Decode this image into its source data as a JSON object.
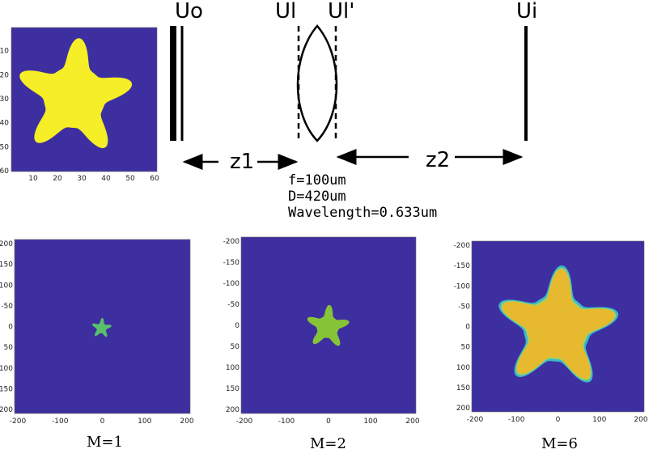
{
  "colors": {
    "plot_bg": "#3e2fa1",
    "star_input": "#f6ee26",
    "star_m1": "#58c26a",
    "star_m2": "#86c437",
    "star_m6_core": "#e6b92f",
    "star_m6_edge": "#a7d25a",
    "star_m6_rim": "#3eb8c9"
  },
  "input_image": {
    "yticks": [
      "10",
      "20",
      "30",
      "40",
      "50",
      "60"
    ],
    "xticks": [
      "10",
      "20",
      "30",
      "40",
      "50",
      "60"
    ]
  },
  "setup": {
    "labels": {
      "u0": "Uo",
      "ul": "Ul",
      "ul_prime": "Ul'",
      "ui": "Ui",
      "z1": "z1",
      "z2": "z2"
    },
    "params": [
      "f=100um",
      "D=420um",
      "Wavelength=0.633um"
    ]
  },
  "results": [
    {
      "label": "M=1",
      "star_scale": 0.11
    },
    {
      "label": "M=2",
      "star_scale": 0.24
    },
    {
      "label": "M=6",
      "star_scale": 0.65
    }
  ],
  "result_axis": {
    "xticks": [
      "-200",
      "-100",
      "0",
      "100",
      "200"
    ],
    "yticks": [
      "-200",
      "-150",
      "-100",
      "-50",
      "0",
      "50",
      "100",
      "150",
      "200"
    ]
  }
}
